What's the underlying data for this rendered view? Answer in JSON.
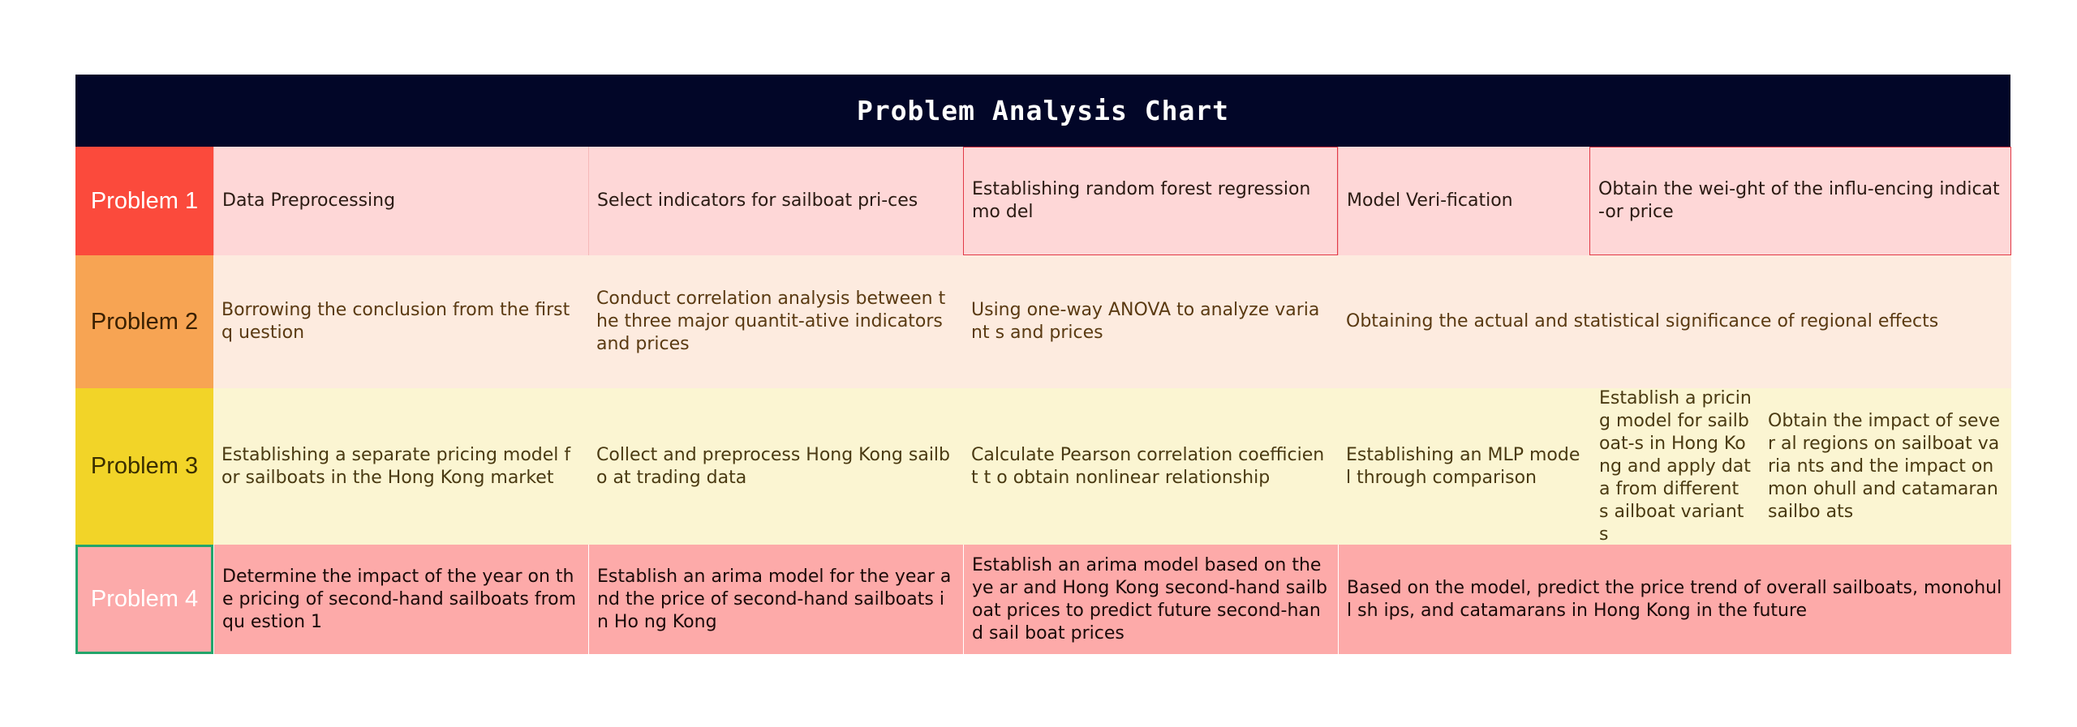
{
  "title": "Problem Analysis Chart",
  "rows": [
    {
      "label": "Problem 1",
      "cells": [
        "Data Preprocessing",
        "Select indicators for sailboat pri-ces",
        "Establishing random forest regression mo del",
        "Model Veri-fication",
        "Obtain the wei-ght of the influ-encing indicat-or price"
      ]
    },
    {
      "label": "Problem 2",
      "cells": [
        "Borrowing the conclusion from the first q uestion",
        "Conduct correlation analysis between the three major quantit-ative indicators and prices",
        "Using one-way ANOVA to analyze variant s and prices",
        "Obtaining the actual and statistical significance of regional effects"
      ]
    },
    {
      "label": "Problem 3",
      "cells": [
        "Establishing a separate pricing model for sailboats in the Hong Kong market",
        "Collect and preprocess Hong Kong sailbo at trading data",
        "Calculate Pearson correlation coefficient t o obtain nonlinear relationship",
        "Establishing an MLP model through comparison",
        "Establish a pricin g model for sailb oat-s in Hong Ko ng and apply dat a from different s ailboat variants",
        "Obtain the impact of sever al regions on sailboat varia nts and the impact on mon ohull and catamaran sailbo ats"
      ]
    },
    {
      "label": "Problem 4",
      "cells": [
        "Determine the impact of the year on the pricing of second-hand sailboats from qu estion 1",
        "Establish an arima model for the year and the price of second-hand sailboats in Ho ng Kong",
        "Establish an arima model based on the ye ar and Hong Kong second-hand sailboat prices to predict future second-hand sail boat prices",
        "Based on the model, predict the price trend of overall sailboats, monohull sh ips, and catamarans in Hong Kong in the future"
      ]
    }
  ]
}
